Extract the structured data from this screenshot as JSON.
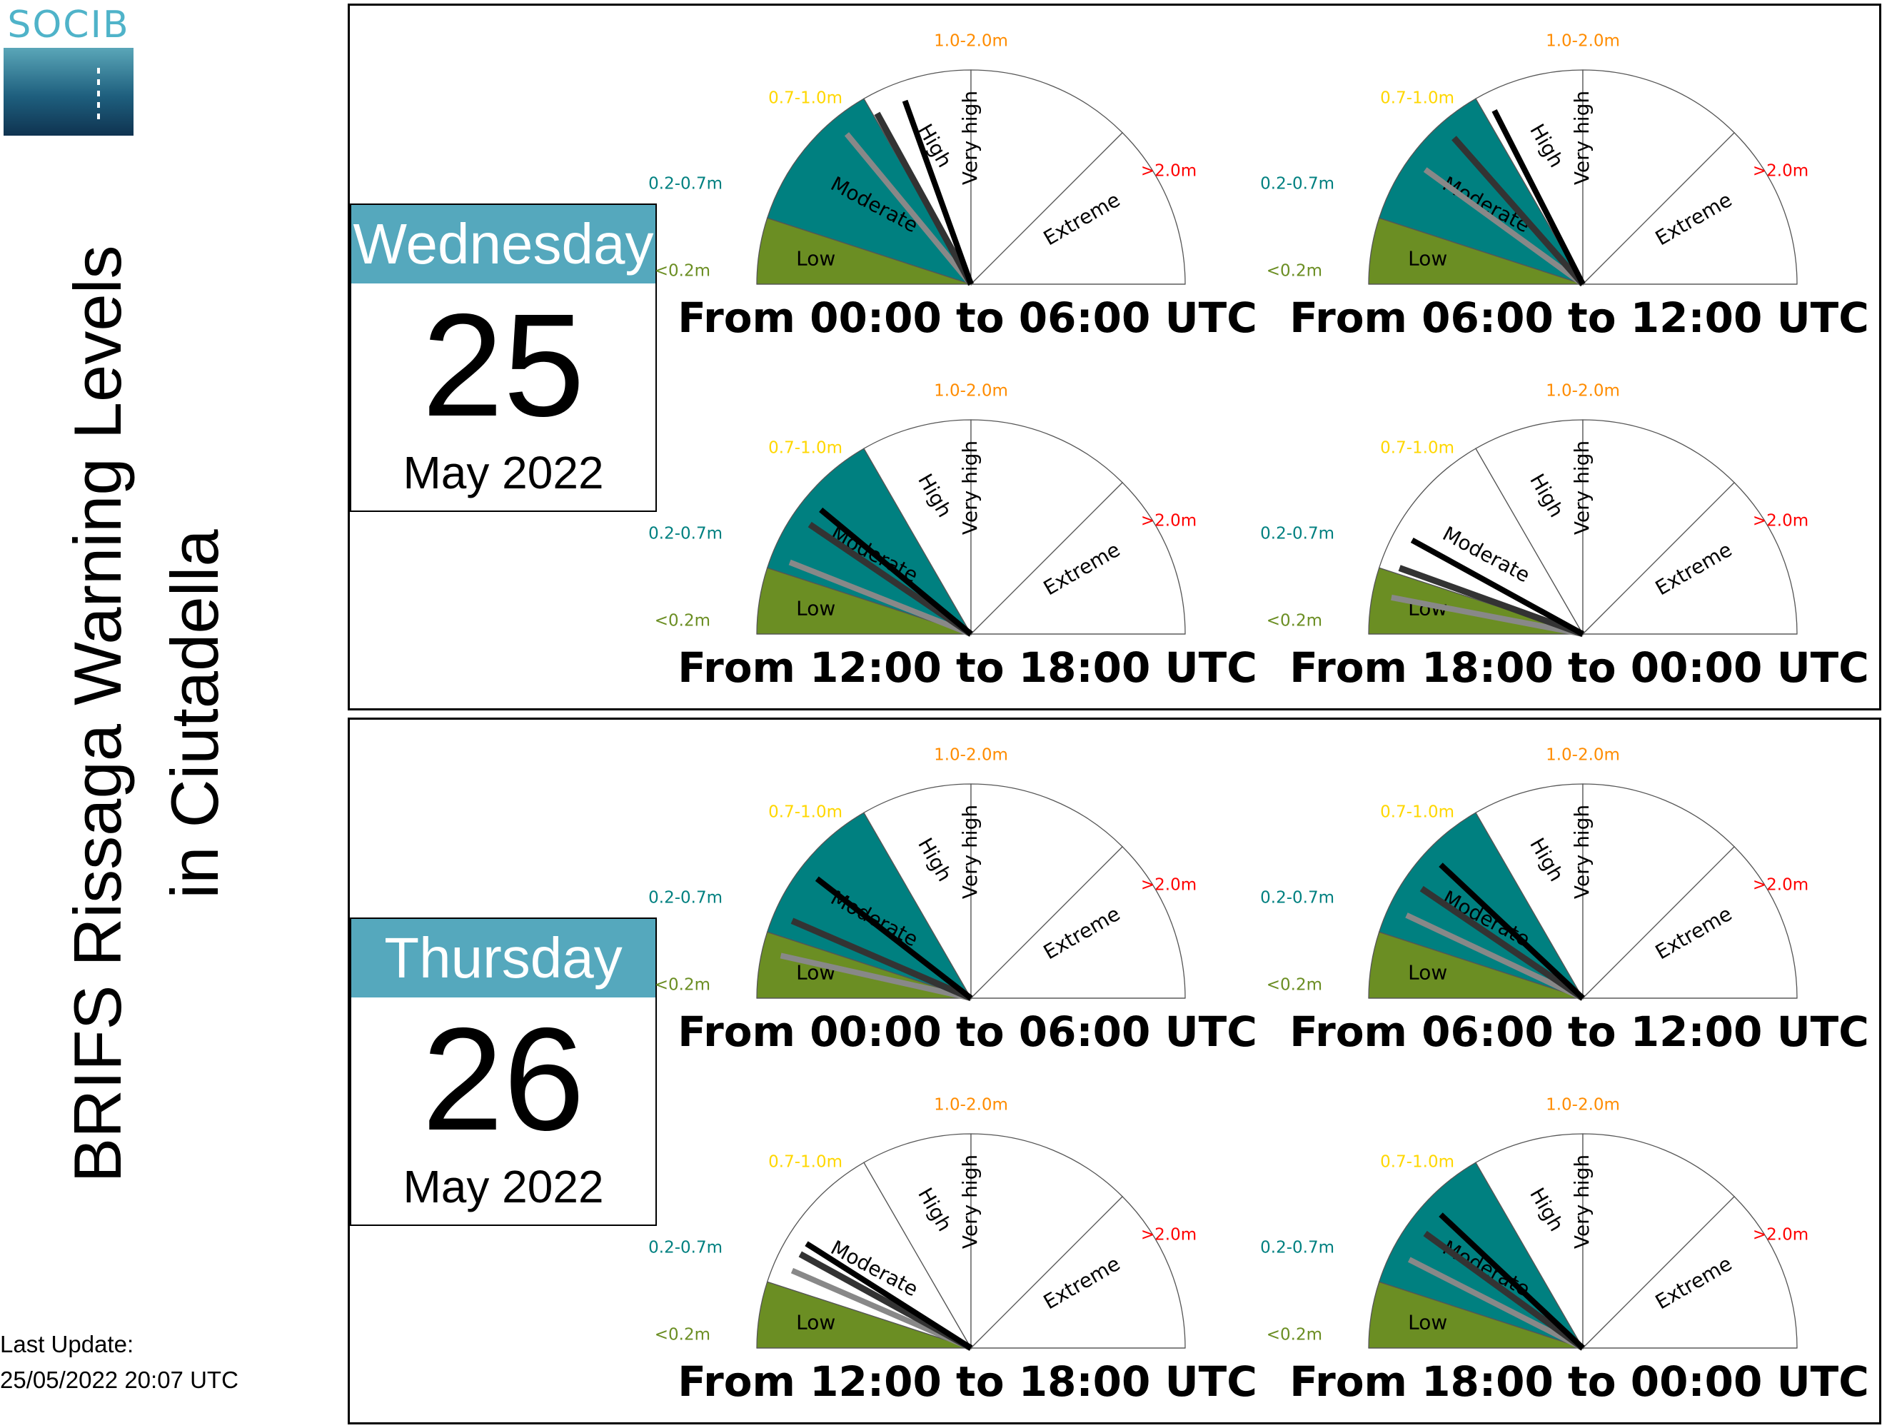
{
  "logo": {
    "text": "SOCIB"
  },
  "title": {
    "line1": "BRIFS Rissaga Warning Levels",
    "line2": "in Ciutadella"
  },
  "last_update": {
    "label": "Last Update:",
    "value": "25/05/2022 20:07 UTC"
  },
  "levels": [
    {
      "name": "Low",
      "range": "<0.2m",
      "color": "#6b8e23"
    },
    {
      "name": "Moderate",
      "range": "0.2-0.7m",
      "color": "#008080"
    },
    {
      "name": "High",
      "range": "0.7-1.0m",
      "color": "#ffd700"
    },
    {
      "name": "Very high",
      "range": "1.0-2.0m",
      "color": "#ff8c00"
    },
    {
      "name": "Extreme",
      "range": ">2.0m",
      "color": "#ff0000"
    }
  ],
  "days": [
    {
      "weekday": "Wednesday",
      "day": "25",
      "month_year": "May 2022",
      "gauges": [
        {
          "period": "From 00:00 to 06:00 UTC",
          "fill_level": 1,
          "needles": [
            0.28,
            0.34,
            0.39
          ]
        },
        {
          "period": "From 06:00 to 12:00 UTC",
          "fill_level": 1,
          "needles": [
            0.2,
            0.27,
            0.35
          ]
        },
        {
          "period": "From 12:00 to 18:00 UTC",
          "fill_level": 1,
          "needles": [
            0.12,
            0.19,
            0.22
          ]
        },
        {
          "period": "From 18:00 to 00:00 UTC",
          "fill_level": 0,
          "needles": [
            0.06,
            0.11,
            0.16
          ]
        }
      ]
    },
    {
      "weekday": "Thursday",
      "day": "26",
      "month_year": "May 2022",
      "gauges": [
        {
          "period": "From 00:00 to 06:00 UTC",
          "fill_level": 1,
          "needles": [
            0.07,
            0.13,
            0.21
          ]
        },
        {
          "period": "From 06:00 to 12:00 UTC",
          "fill_level": 1,
          "needles": [
            0.14,
            0.19,
            0.24
          ]
        },
        {
          "period": "From 12:00 to 18:00 UTC",
          "fill_level": 0,
          "needles": [
            0.13,
            0.16,
            0.18
          ]
        },
        {
          "period": "From 18:00 to 00:00 UTC",
          "fill_level": 1,
          "needles": [
            0.15,
            0.2,
            0.24
          ]
        }
      ]
    }
  ]
}
